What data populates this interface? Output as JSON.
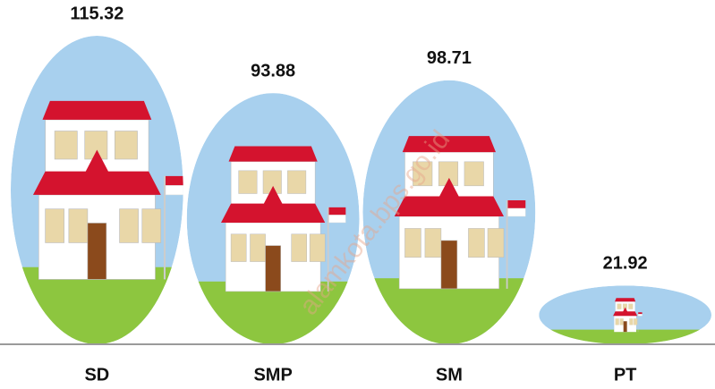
{
  "chart_data": {
    "type": "pictograph",
    "categories": [
      "SD",
      "SMP",
      "SM",
      "PT"
    ],
    "values": [
      115.32,
      93.88,
      98.71,
      21.92
    ],
    "color": "#a8d0ee",
    "ground_color": "#8dc63f",
    "watermark": "alamkota.bps.go.id"
  }
}
